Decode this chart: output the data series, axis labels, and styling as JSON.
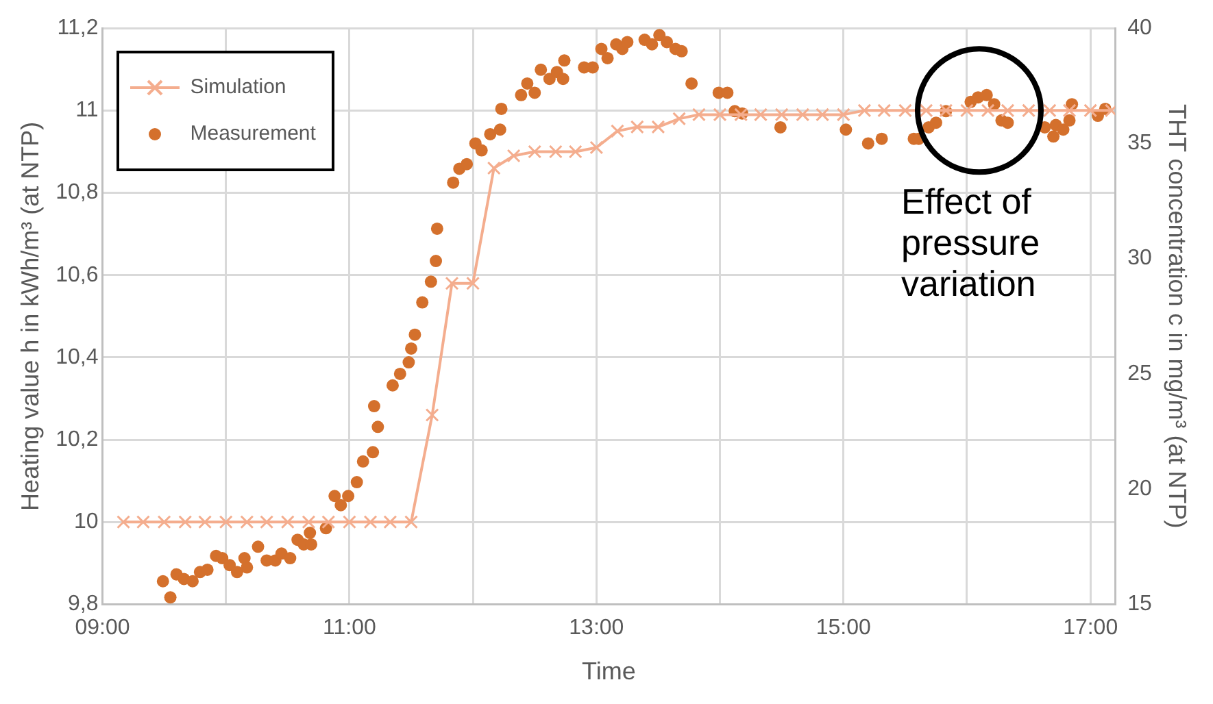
{
  "chart_data": {
    "type": "line",
    "xlabel": "Time",
    "ylabel": "Heating value h in kWh/m³ (at NTP)",
    "y2label": "THT concentration c in mg/m³ (at NTP)",
    "xlim": [
      9,
      17.2
    ],
    "xticks": [
      {
        "value": 9,
        "label": "09:00"
      },
      {
        "value": 10,
        "label": null
      },
      {
        "value": 11,
        "label": "11:00"
      },
      {
        "value": 12,
        "label": null
      },
      {
        "value": 13,
        "label": "13:00"
      },
      {
        "value": 14,
        "label": null
      },
      {
        "value": 15,
        "label": "15:00"
      },
      {
        "value": 16,
        "label": null
      },
      {
        "value": 17,
        "label": "17:00"
      }
    ],
    "ylim": [
      9.8,
      11.2
    ],
    "yticks": [
      {
        "value": 9.8,
        "label": "9,8"
      },
      {
        "value": 10,
        "label": "10"
      },
      {
        "value": 10.2,
        "label": "10,2"
      },
      {
        "value": 10.4,
        "label": "10,4"
      },
      {
        "value": 10.6,
        "label": "10,6"
      },
      {
        "value": 10.8,
        "label": "10,8"
      },
      {
        "value": 11,
        "label": "11"
      },
      {
        "value": 11.2,
        "label": "11,2"
      }
    ],
    "y2lim": [
      15,
      40
    ],
    "y2ticks": [
      15,
      20,
      25,
      30,
      35,
      40
    ],
    "grid": true,
    "legend": "top left",
    "annotations": [
      {
        "text": "Effect of pressure variation",
        "x": 16.1,
        "y": 11.0
      }
    ],
    "series": [
      {
        "name": "Simulation",
        "marker": "cross",
        "color": "#f4ad8e",
        "x": [
          9.17,
          9.33,
          9.5,
          9.67,
          9.83,
          10,
          10.17,
          10.33,
          10.5,
          10.67,
          10.83,
          11,
          11.17,
          11.33,
          11.5,
          11.67,
          11.83,
          12,
          12.17,
          12.33,
          12.5,
          12.67,
          12.83,
          13,
          13.17,
          13.33,
          13.5,
          13.67,
          13.83,
          14,
          14.17,
          14.33,
          14.5,
          14.67,
          14.83,
          15,
          15.17,
          15.33,
          15.5,
          15.67,
          15.83,
          16,
          16.17,
          16.33,
          16.5,
          16.67,
          16.83,
          17,
          17.17
        ],
        "values": [
          10,
          10,
          10,
          10,
          10,
          10,
          10,
          10,
          10,
          10,
          10,
          10,
          10,
          10,
          10,
          10.26,
          10.58,
          10.58,
          10.86,
          10.89,
          10.9,
          10.9,
          10.9,
          10.91,
          10.95,
          10.96,
          10.96,
          10.98,
          10.99,
          10.99,
          10.99,
          10.99,
          10.99,
          10.99,
          10.99,
          10.99,
          11,
          11,
          11,
          11,
          11,
          11,
          11,
          11,
          11,
          11,
          11,
          11,
          11
        ]
      },
      {
        "name": "Measurement",
        "type": "scatter",
        "marker": "circle",
        "axis": "y2",
        "color": "#d4702c",
        "x": [
          9.49,
          9.55,
          9.6,
          9.66,
          9.73,
          9.79,
          9.85,
          9.92,
          9.97,
          10.03,
          10.09,
          10.15,
          10.17,
          10.26,
          10.33,
          10.4,
          10.45,
          10.52,
          10.58,
          10.63,
          10.68,
          10.69,
          10.81,
          10.88,
          10.93,
          10.99,
          11.06,
          11.11,
          11.19,
          11.2,
          11.23,
          11.35,
          11.41,
          11.48,
          11.5,
          11.53,
          11.59,
          11.66,
          11.7,
          11.71,
          11.84,
          11.89,
          11.95,
          12.02,
          12.07,
          12.14,
          12.22,
          12.23,
          12.39,
          12.44,
          12.5,
          12.55,
          12.62,
          12.68,
          12.73,
          12.74,
          12.9,
          12.97,
          13.04,
          13.09,
          13.16,
          13.21,
          13.25,
          13.39,
          13.45,
          13.51,
          13.57,
          13.64,
          13.69,
          13.77,
          13.99,
          14.06,
          14.12,
          14.18,
          14.49,
          15.02,
          15.2,
          15.31,
          15.57,
          15.61,
          15.69,
          15.75,
          15.83,
          16.03,
          16.09,
          16.16,
          16.22,
          16.28,
          16.33,
          16.63,
          16.7,
          16.72,
          16.78,
          16.83,
          16.85,
          17.06,
          17.12
        ],
        "values": [
          16,
          15.3,
          16.3,
          16.1,
          16,
          16.4,
          16.5,
          17.1,
          17,
          16.7,
          16.4,
          17,
          16.6,
          17.5,
          16.9,
          16.9,
          17.2,
          17,
          17.8,
          17.6,
          18.1,
          17.6,
          18.3,
          19.7,
          19.3,
          19.7,
          20.3,
          21.2,
          21.6,
          23.6,
          22.7,
          24.5,
          25,
          25.5,
          26.1,
          26.7,
          28.1,
          29,
          29.9,
          31.3,
          33.3,
          33.9,
          34.1,
          35,
          34.7,
          35.4,
          35.6,
          36.5,
          37.1,
          37.6,
          37.2,
          38.2,
          37.8,
          38.1,
          37.8,
          38.6,
          38.3,
          38.3,
          39.1,
          38.7,
          39.3,
          39.1,
          39.4,
          39.5,
          39.3,
          39.7,
          39.4,
          39.1,
          39,
          37.6,
          37.2,
          37.2,
          36.4,
          36.3,
          35.7,
          35.6,
          35,
          35.2,
          35.2,
          35.2,
          35.7,
          35.9,
          36.4,
          36.8,
          37,
          37.1,
          36.7,
          36,
          35.9,
          35.7,
          35.3,
          35.8,
          35.6,
          36,
          36.7,
          36.2,
          36.5
        ]
      }
    ]
  }
}
